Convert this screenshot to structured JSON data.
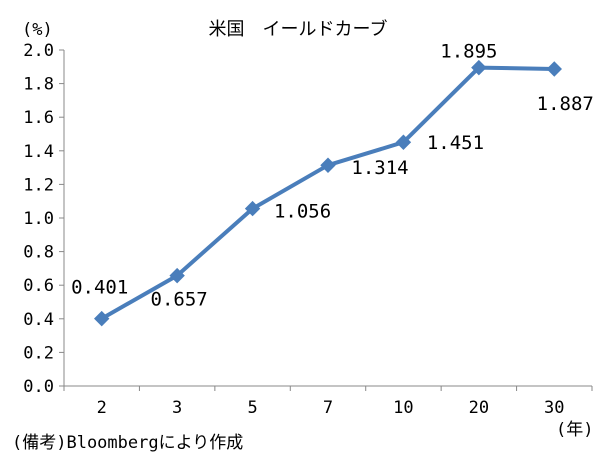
{
  "chart_data": {
    "type": "line",
    "title": "米国　イールドカーブ",
    "ylabel": "(%)",
    "xlabel": "(年)",
    "source": "(備考)Bloombergにより作成",
    "categories": [
      "2",
      "3",
      "5",
      "7",
      "10",
      "20",
      "30"
    ],
    "values": [
      0.401,
      0.657,
      1.056,
      1.314,
      1.451,
      1.895,
      1.887
    ],
    "data_labels": [
      "0.401",
      "0.657",
      "1.056",
      "1.314",
      "1.451",
      "1.895",
      "1.887"
    ],
    "ylim": [
      0,
      2.0
    ],
    "yticks": [
      "0.0",
      "0.2",
      "0.4",
      "0.6",
      "0.8",
      "1.0",
      "1.2",
      "1.4",
      "1.6",
      "1.8",
      "2.0"
    ],
    "grid": false,
    "legend": "none",
    "series_color": "#4a7ebb",
    "marker": "diamond"
  }
}
